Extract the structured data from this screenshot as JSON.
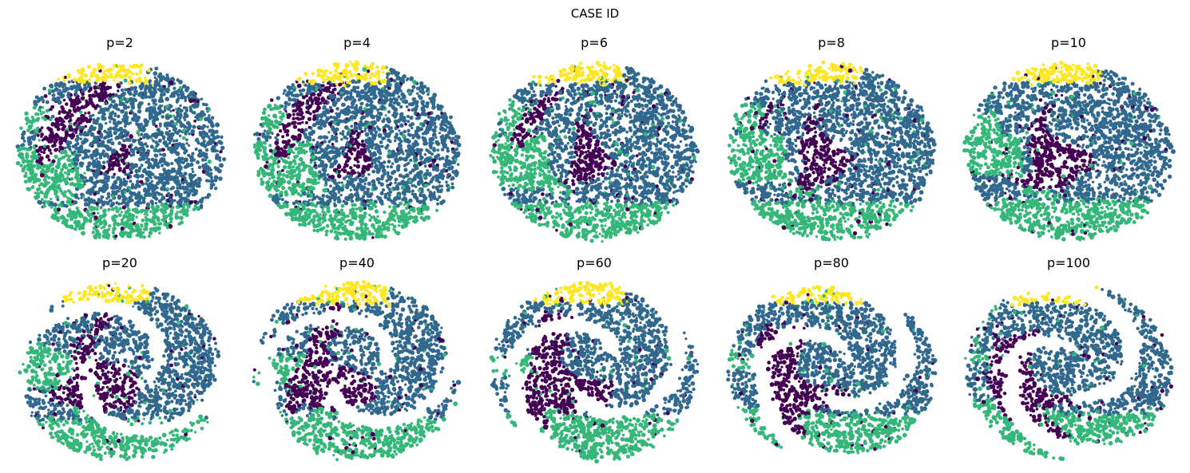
{
  "figure": {
    "title": "CASE ID"
  },
  "colors": {
    "cluster_0": "#440154",
    "cluster_1": "#31688e",
    "cluster_2": "#35b779",
    "cluster_3": "#fde725"
  },
  "chart_data": [
    {
      "type": "scatter",
      "title": "p=2",
      "perplexity": 2,
      "grid": false,
      "axes": "off",
      "categories": [
        "0",
        "1",
        "2",
        "3"
      ]
    },
    {
      "type": "scatter",
      "title": "p=4",
      "perplexity": 4,
      "grid": false,
      "axes": "off",
      "categories": [
        "0",
        "1",
        "2",
        "3"
      ]
    },
    {
      "type": "scatter",
      "title": "p=6",
      "perplexity": 6,
      "grid": false,
      "axes": "off",
      "categories": [
        "0",
        "1",
        "2",
        "3"
      ]
    },
    {
      "type": "scatter",
      "title": "p=8",
      "perplexity": 8,
      "grid": false,
      "axes": "off",
      "categories": [
        "0",
        "1",
        "2",
        "3"
      ]
    },
    {
      "type": "scatter",
      "title": "p=10",
      "perplexity": 10,
      "grid": false,
      "axes": "off",
      "categories": [
        "0",
        "1",
        "2",
        "3"
      ]
    },
    {
      "type": "scatter",
      "title": "p=20",
      "perplexity": 20,
      "grid": false,
      "axes": "off",
      "categories": [
        "0",
        "1",
        "2",
        "3"
      ]
    },
    {
      "type": "scatter",
      "title": "p=40",
      "perplexity": 40,
      "grid": false,
      "axes": "off",
      "categories": [
        "0",
        "1",
        "2",
        "3"
      ]
    },
    {
      "type": "scatter",
      "title": "p=60",
      "perplexity": 60,
      "grid": false,
      "axes": "off",
      "categories": [
        "0",
        "1",
        "2",
        "3"
      ]
    },
    {
      "type": "scatter",
      "title": "p=80",
      "perplexity": 80,
      "grid": false,
      "axes": "off",
      "categories": [
        "0",
        "1",
        "2",
        "3"
      ]
    },
    {
      "type": "scatter",
      "title": "p=100",
      "perplexity": 100,
      "grid": false,
      "axes": "off",
      "categories": [
        "0",
        "1",
        "2",
        "3"
      ]
    }
  ]
}
